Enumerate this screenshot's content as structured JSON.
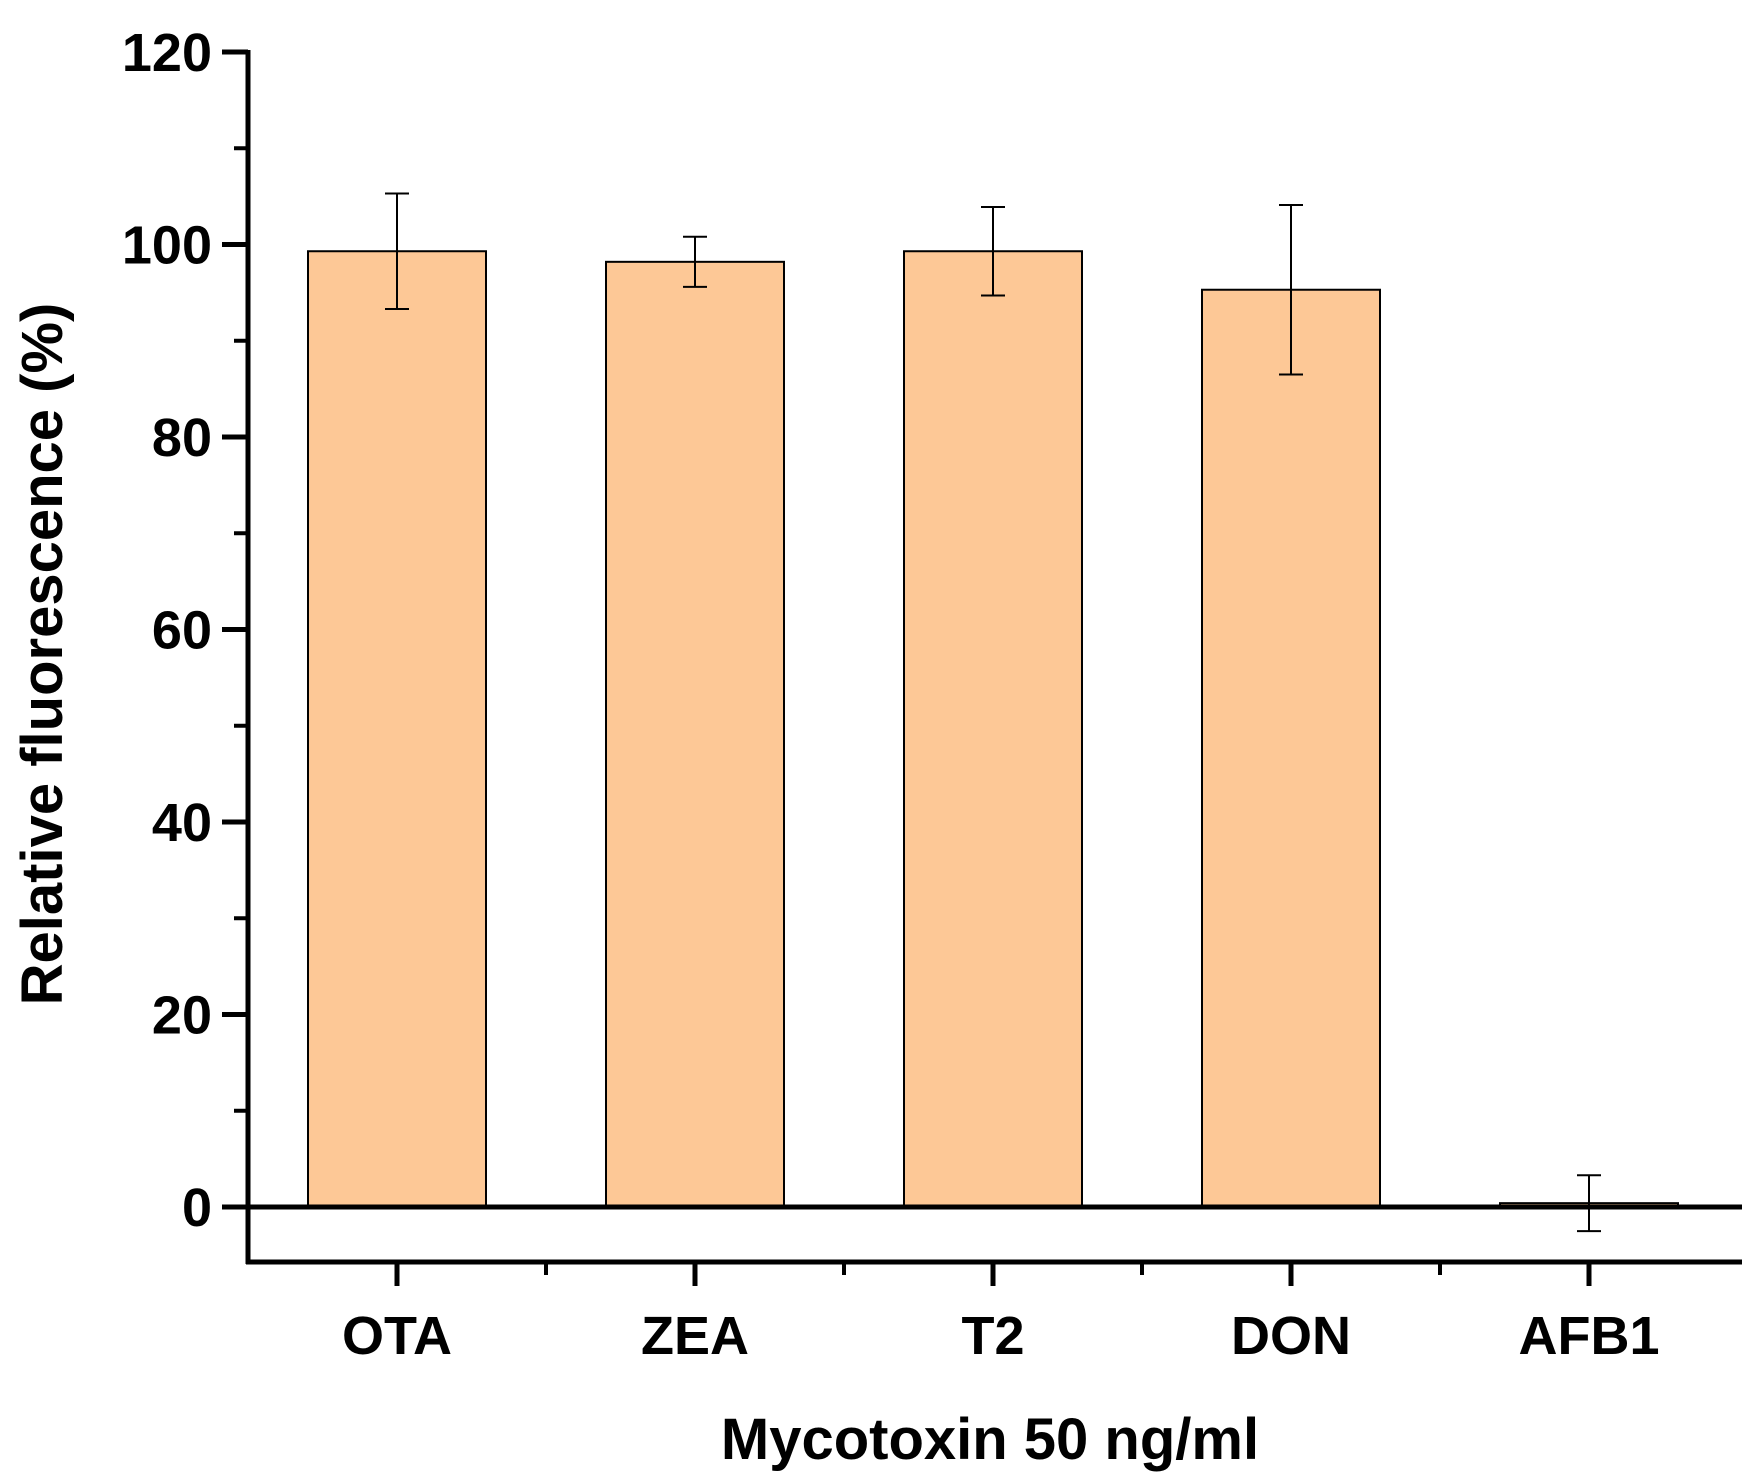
{
  "chart_data": {
    "type": "bar",
    "title": "",
    "xlabel": "Mycotoxin 50 ng/ml",
    "ylabel": "Relative fluorescence (%)",
    "categories": [
      "OTA",
      "ZEA",
      "T2",
      "DON",
      "AFB1"
    ],
    "values": [
      99.3,
      98.2,
      99.3,
      95.3,
      0.4
    ],
    "errors": [
      6.0,
      2.6,
      4.6,
      8.8,
      2.9
    ],
    "ylim": [
      -6,
      120
    ],
    "yticks": [
      0,
      20,
      40,
      60,
      80,
      100,
      120
    ],
    "ytick_labels": [
      "0",
      "20",
      "40",
      "60",
      "80",
      "100",
      "120"
    ],
    "grid": false,
    "bar_color": "#FDC896",
    "edge_color": "#000000"
  }
}
